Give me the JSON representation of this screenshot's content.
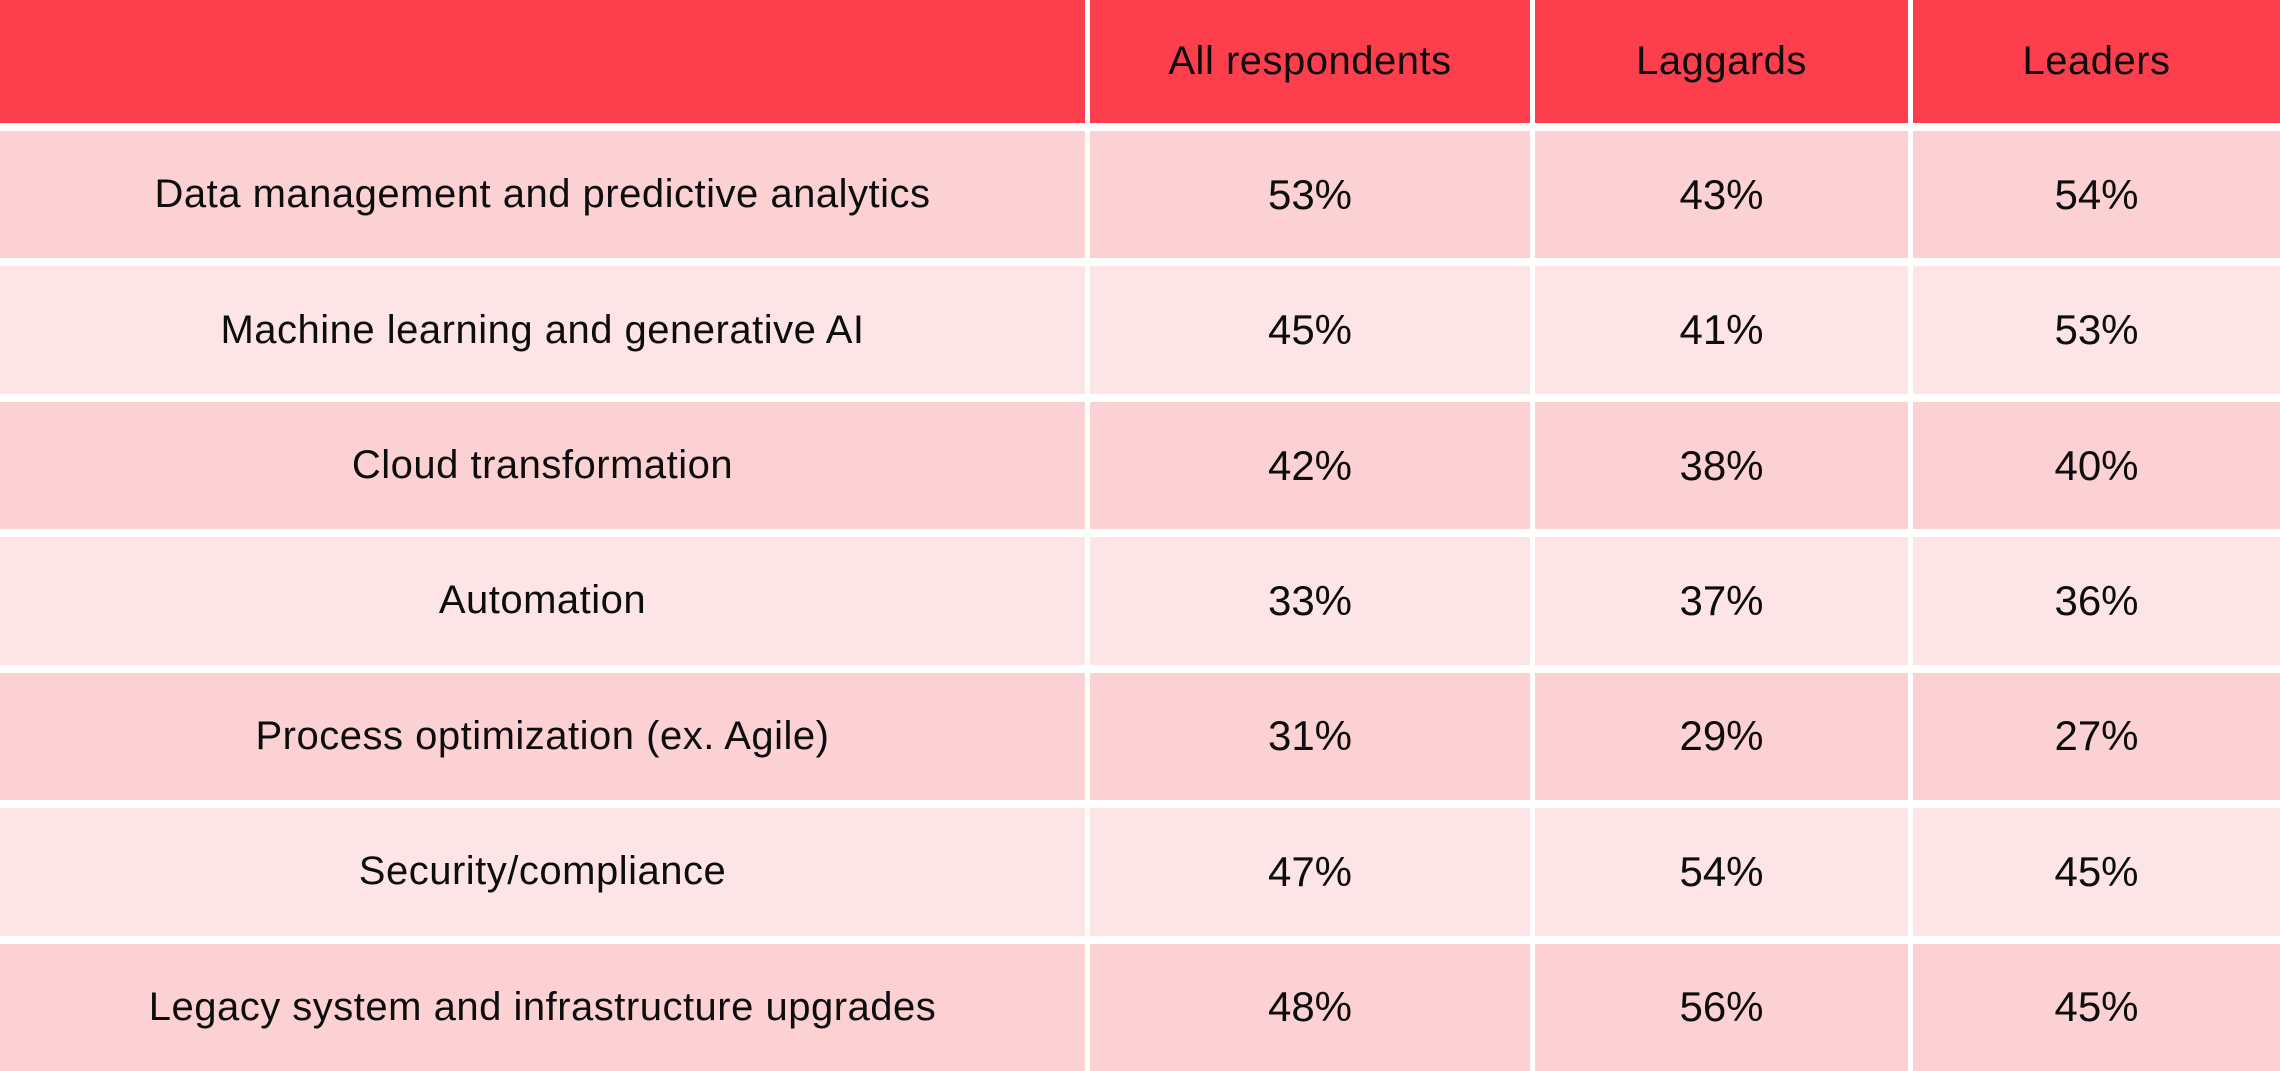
{
  "table": {
    "corner_label": "",
    "columns": [
      "All respondents",
      "Laggards",
      "Leaders"
    ],
    "rows": [
      {
        "label": "Data management and predictive analytics",
        "values": [
          "53%",
          "43%",
          "54%"
        ]
      },
      {
        "label": "Machine learning and generative AI",
        "values": [
          "45%",
          "41%",
          "53%"
        ]
      },
      {
        "label": "Cloud transformation",
        "values": [
          "42%",
          "38%",
          "40%"
        ]
      },
      {
        "label": "Automation",
        "values": [
          "33%",
          "37%",
          "36%"
        ]
      },
      {
        "label": "Process optimization (ex. Agile)",
        "values": [
          "31%",
          "29%",
          "27%"
        ]
      },
      {
        "label": "Security/compliance",
        "values": [
          "47%",
          "54%",
          "45%"
        ]
      },
      {
        "label": "Legacy system and infrastructure upgrades",
        "values": [
          "48%",
          "56%",
          "45%"
        ]
      }
    ]
  },
  "colors": {
    "header_red": "#fc3e4d",
    "row_dark_pink": "#fcd1d3",
    "row_light_pink": "#fde5e7",
    "gridline_white": "#ffffff",
    "text": "#0d0d0d"
  },
  "chart_data": {
    "type": "table",
    "title": "",
    "categories": [
      "Data management and predictive analytics",
      "Machine learning and generative AI",
      "Cloud transformation",
      "Automation",
      "Process optimization (ex. Agile)",
      "Security/compliance",
      "Legacy system and infrastructure upgrades"
    ],
    "series": [
      {
        "name": "All respondents",
        "values": [
          53,
          45,
          42,
          33,
          31,
          47,
          48
        ]
      },
      {
        "name": "Laggards",
        "values": [
          43,
          41,
          38,
          37,
          29,
          54,
          56
        ]
      },
      {
        "name": "Leaders",
        "values": [
          54,
          53,
          40,
          36,
          27,
          45,
          45
        ]
      }
    ],
    "unit": "%",
    "layout": "header row red, body rows alternate dark/light pink, white grid gaps, all text centered black"
  }
}
